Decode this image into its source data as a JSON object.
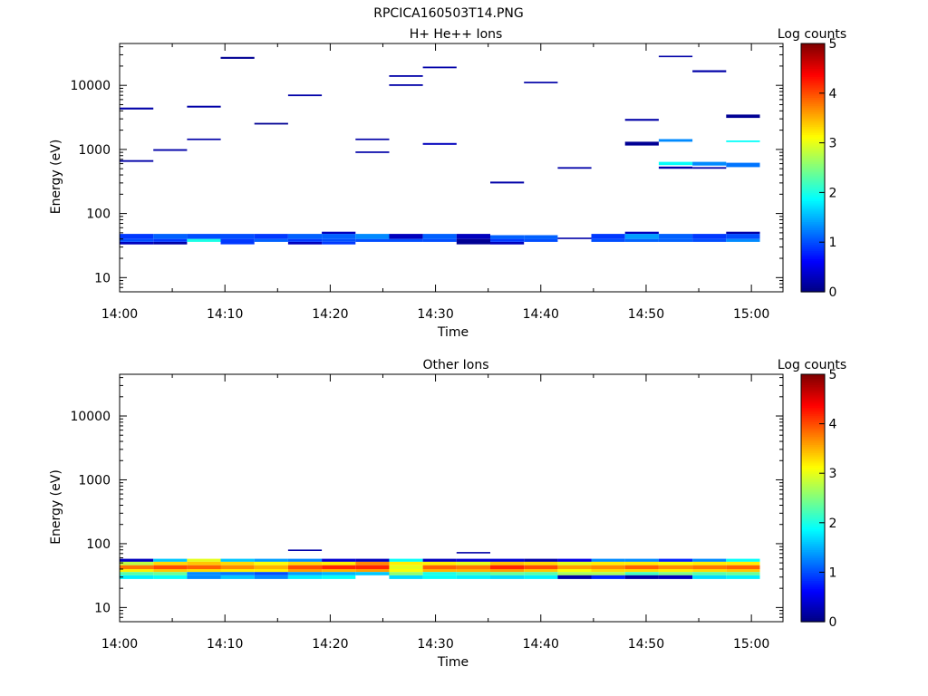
{
  "figure_title": "RPCICA160503T14.PNG",
  "chart_data": [
    {
      "type": "heatmap",
      "title": "H+ He++ Ions",
      "xlabel": "Time",
      "ylabel": "Energy (eV)",
      "x_ticks": [
        "14:00",
        "14:10",
        "14:20",
        "14:30",
        "14:40",
        "14:50",
        "15:00"
      ],
      "y_ticks": [
        "10",
        "100",
        "1000",
        "10000"
      ],
      "yscale": "log",
      "ylim": [
        6,
        45000
      ],
      "xlim_minutes": [
        0,
        63
      ],
      "colorbar": {
        "label": "Log counts",
        "ticks": [
          "0",
          "1",
          "2",
          "3",
          "4",
          "5"
        ],
        "range": [
          0,
          5
        ],
        "colormap": "jet"
      },
      "cells": [
        [
          0,
          3.2,
          40,
          48,
          0.9
        ],
        [
          0,
          3.2,
          36,
          40,
          1.0
        ],
        [
          0,
          3.2,
          33,
          36,
          0.3
        ],
        [
          0,
          3.2,
          640,
          680,
          0.2
        ],
        [
          0,
          3.2,
          4200,
          4500,
          0.2
        ],
        [
          3.2,
          6.4,
          40,
          48,
          1.1
        ],
        [
          3.2,
          6.4,
          36,
          40,
          0.9
        ],
        [
          3.2,
          6.4,
          33,
          36,
          0.2
        ],
        [
          3.2,
          6.4,
          950,
          1010,
          0.2
        ],
        [
          6.4,
          9.6,
          40,
          48,
          1.0
        ],
        [
          6.4,
          9.6,
          36,
          40,
          2.0
        ],
        [
          6.4,
          9.6,
          1400,
          1480,
          0.2
        ],
        [
          6.4,
          9.6,
          4500,
          4800,
          0.2
        ],
        [
          9.6,
          12.8,
          40,
          48,
          1.0
        ],
        [
          9.6,
          12.8,
          33,
          40,
          0.9
        ],
        [
          9.6,
          12.8,
          26000,
          27800,
          0.1
        ],
        [
          12.8,
          16.0,
          40,
          48,
          0.9
        ],
        [
          12.8,
          16.0,
          36,
          40,
          1.1
        ],
        [
          12.8,
          16.0,
          2450,
          2600,
          0.1
        ],
        [
          16.0,
          19.2,
          40,
          48,
          1.1
        ],
        [
          16.0,
          19.2,
          36,
          40,
          0.9
        ],
        [
          16.0,
          19.2,
          33,
          36,
          0.3
        ],
        [
          16.0,
          19.2,
          6800,
          7200,
          0.2
        ],
        [
          19.2,
          22.4,
          48,
          52,
          0.3
        ],
        [
          19.2,
          22.4,
          40,
          48,
          1.1
        ],
        [
          19.2,
          22.4,
          36,
          40,
          1.0
        ],
        [
          19.2,
          22.4,
          33,
          36,
          0.9
        ],
        [
          22.4,
          25.6,
          40,
          48,
          1.3
        ],
        [
          22.4,
          25.6,
          36,
          40,
          1.0
        ],
        [
          22.4,
          25.6,
          880,
          930,
          0.2
        ],
        [
          22.4,
          25.6,
          1400,
          1480,
          0.2
        ],
        [
          25.6,
          28.8,
          40,
          48,
          0.3
        ],
        [
          25.6,
          28.8,
          36,
          40,
          1.0
        ],
        [
          25.6,
          28.8,
          9800,
          10400,
          0.2
        ],
        [
          25.6,
          28.8,
          13600,
          14400,
          0.2
        ],
        [
          28.8,
          32.0,
          40,
          48,
          1.1
        ],
        [
          28.8,
          32.0,
          36,
          40,
          1.0
        ],
        [
          28.8,
          32.0,
          1180,
          1260,
          0.3
        ],
        [
          28.8,
          32.0,
          18500,
          19600,
          0.2
        ],
        [
          32.0,
          35.2,
          40,
          48,
          0.3
        ],
        [
          32.0,
          35.2,
          33,
          40,
          0.1
        ],
        [
          35.2,
          38.4,
          40,
          46,
          1.1
        ],
        [
          35.2,
          38.4,
          36,
          40,
          0.9
        ],
        [
          35.2,
          38.4,
          33,
          36,
          0.3
        ],
        [
          35.2,
          38.4,
          295,
          315,
          0.2
        ],
        [
          38.4,
          41.6,
          40,
          46,
          1.1
        ],
        [
          38.4,
          41.6,
          36,
          40,
          1.0
        ],
        [
          38.4,
          41.6,
          10800,
          11400,
          0.2
        ],
        [
          41.6,
          44.8,
          40,
          42,
          0.2
        ],
        [
          41.6,
          44.8,
          500,
          530,
          0.2
        ],
        [
          44.8,
          48.0,
          40,
          48,
          0.9
        ],
        [
          44.8,
          48.0,
          36,
          40,
          1.0
        ],
        [
          48.0,
          51.2,
          48,
          52,
          0.3
        ],
        [
          48.0,
          51.2,
          40,
          48,
          1.4
        ],
        [
          48.0,
          51.2,
          36,
          40,
          1.1
        ],
        [
          48.0,
          51.2,
          1150,
          1320,
          0.1
        ],
        [
          48.0,
          51.2,
          2800,
          3000,
          0.2
        ],
        [
          51.2,
          54.4,
          40,
          48,
          1.1
        ],
        [
          51.2,
          54.4,
          36,
          40,
          1.1
        ],
        [
          51.2,
          54.4,
          500,
          540,
          0.2
        ],
        [
          51.2,
          54.4,
          570,
          640,
          1.9
        ],
        [
          51.2,
          54.4,
          1320,
          1450,
          1.3
        ],
        [
          51.2,
          54.4,
          27600,
          29000,
          0.2
        ],
        [
          54.4,
          57.6,
          40,
          48,
          0.9
        ],
        [
          54.4,
          57.6,
          36,
          40,
          1.0
        ],
        [
          54.4,
          57.6,
          500,
          530,
          0.2
        ],
        [
          54.4,
          57.6,
          560,
          640,
          1.3
        ],
        [
          54.4,
          57.6,
          16000,
          17200,
          0.2
        ],
        [
          57.6,
          60.8,
          48,
          52,
          0.2
        ],
        [
          57.6,
          60.8,
          40,
          48,
          1.0
        ],
        [
          57.6,
          60.8,
          36,
          40,
          1.3
        ],
        [
          57.6,
          60.8,
          530,
          620,
          1.2
        ],
        [
          57.6,
          60.8,
          1300,
          1380,
          1.9
        ],
        [
          57.6,
          60.8,
          3100,
          3500,
          0.1
        ]
      ]
    },
    {
      "type": "heatmap",
      "title": "Other Ions",
      "xlabel": "Time",
      "ylabel": "Energy (eV)",
      "x_ticks": [
        "14:00",
        "14:10",
        "14:20",
        "14:30",
        "14:40",
        "14:50",
        "15:00"
      ],
      "y_ticks": [
        "10",
        "100",
        "1000",
        "10000"
      ],
      "yscale": "log",
      "ylim": [
        6,
        45000
      ],
      "xlim_minutes": [
        0,
        63
      ],
      "colorbar": {
        "label": "Log counts",
        "ticks": [
          "0",
          "1",
          "2",
          "3",
          "4",
          "5"
        ],
        "range": [
          0,
          5
        ],
        "colormap": "jet"
      },
      "cells": [
        [
          0,
          3.2,
          52,
          58,
          0.3
        ],
        [
          0,
          3.2,
          46,
          52,
          2.8
        ],
        [
          0,
          3.2,
          40,
          46,
          3.8
        ],
        [
          0,
          3.2,
          36,
          40,
          3.2
        ],
        [
          0,
          3.2,
          32,
          36,
          2.3
        ],
        [
          0,
          3.2,
          28,
          32,
          1.8
        ],
        [
          3.2,
          6.4,
          52,
          58,
          1.6
        ],
        [
          3.2,
          6.4,
          46,
          52,
          3.3
        ],
        [
          3.2,
          6.4,
          40,
          46,
          4.0
        ],
        [
          3.2,
          6.4,
          36,
          40,
          3.4
        ],
        [
          3.2,
          6.4,
          32,
          36,
          2.4
        ],
        [
          3.2,
          6.4,
          28,
          32,
          1.9
        ],
        [
          6.4,
          9.6,
          52,
          58,
          3.0
        ],
        [
          6.4,
          9.6,
          46,
          52,
          3.4
        ],
        [
          6.4,
          9.6,
          40,
          46,
          3.9
        ],
        [
          6.4,
          9.6,
          36,
          40,
          3.3
        ],
        [
          6.4,
          9.6,
          32,
          36,
          1.3
        ],
        [
          6.4,
          9.6,
          28,
          32,
          1.3
        ],
        [
          9.6,
          12.8,
          52,
          58,
          1.6
        ],
        [
          9.6,
          12.8,
          46,
          52,
          3.3
        ],
        [
          9.6,
          12.8,
          40,
          46,
          3.7
        ],
        [
          9.6,
          12.8,
          36,
          40,
          3.2
        ],
        [
          9.6,
          12.8,
          32,
          36,
          1.2
        ],
        [
          9.6,
          12.8,
          28,
          32,
          1.6
        ],
        [
          12.8,
          16.0,
          52,
          58,
          1.4
        ],
        [
          12.8,
          16.0,
          46,
          52,
          3.1
        ],
        [
          12.8,
          16.0,
          40,
          46,
          3.5
        ],
        [
          12.8,
          16.0,
          36,
          40,
          3.2
        ],
        [
          12.8,
          16.0,
          32,
          36,
          1.0
        ],
        [
          12.8,
          16.0,
          28,
          32,
          1.3
        ],
        [
          16.0,
          19.2,
          78,
          81,
          0.2
        ],
        [
          16.0,
          19.2,
          52,
          58,
          1.3
        ],
        [
          16.0,
          19.2,
          46,
          52,
          3.3
        ],
        [
          16.0,
          19.2,
          40,
          46,
          4.0
        ],
        [
          16.0,
          19.2,
          36,
          40,
          3.6
        ],
        [
          16.0,
          19.2,
          32,
          36,
          1.4
        ],
        [
          16.0,
          19.2,
          28,
          32,
          1.8
        ],
        [
          19.2,
          22.4,
          52,
          58,
          0.4
        ],
        [
          19.2,
          22.4,
          46,
          52,
          3.2
        ],
        [
          19.2,
          22.4,
          40,
          46,
          4.2
        ],
        [
          19.2,
          22.4,
          36,
          40,
          3.5
        ],
        [
          19.2,
          22.4,
          32,
          36,
          1.5
        ],
        [
          19.2,
          22.4,
          28,
          32,
          1.9
        ],
        [
          22.4,
          25.6,
          52,
          58,
          0.3
        ],
        [
          22.4,
          25.6,
          46,
          52,
          3.7
        ],
        [
          22.4,
          25.6,
          40,
          46,
          4.2
        ],
        [
          22.4,
          25.6,
          36,
          40,
          3.6
        ],
        [
          22.4,
          25.6,
          32,
          36,
          1.6
        ],
        [
          25.6,
          28.8,
          52,
          58,
          1.9
        ],
        [
          25.6,
          28.8,
          46,
          52,
          3.2
        ],
        [
          25.6,
          28.8,
          40,
          46,
          3.0
        ],
        [
          25.6,
          28.8,
          36,
          40,
          3.1
        ],
        [
          25.6,
          28.8,
          32,
          36,
          2.6
        ],
        [
          25.6,
          28.8,
          28,
          32,
          1.7
        ],
        [
          28.8,
          32.0,
          52,
          58,
          0.3
        ],
        [
          28.8,
          32.0,
          46,
          52,
          3.2
        ],
        [
          28.8,
          32.0,
          40,
          46,
          3.9
        ],
        [
          28.8,
          32.0,
          36,
          40,
          3.5
        ],
        [
          28.8,
          32.0,
          32,
          36,
          2.0
        ],
        [
          28.8,
          32.0,
          28,
          32,
          1.9
        ],
        [
          32.0,
          35.2,
          71,
          74,
          0.2
        ],
        [
          32.0,
          35.2,
          52,
          58,
          0.4
        ],
        [
          32.0,
          35.2,
          46,
          52,
          3.0
        ],
        [
          32.0,
          35.2,
          40,
          46,
          3.8
        ],
        [
          32.0,
          35.2,
          36,
          40,
          3.5
        ],
        [
          32.0,
          35.2,
          32,
          36,
          2.2
        ],
        [
          32.0,
          35.2,
          28,
          32,
          1.8
        ],
        [
          35.2,
          38.4,
          52,
          58,
          0.4
        ],
        [
          35.2,
          38.4,
          46,
          52,
          3.4
        ],
        [
          35.2,
          38.4,
          40,
          46,
          4.2
        ],
        [
          35.2,
          38.4,
          36,
          40,
          3.6
        ],
        [
          35.2,
          38.4,
          32,
          36,
          2.4
        ],
        [
          35.2,
          38.4,
          28,
          32,
          1.7
        ],
        [
          38.4,
          41.6,
          52,
          58,
          0.2
        ],
        [
          38.4,
          41.6,
          46,
          52,
          3.3
        ],
        [
          38.4,
          41.6,
          40,
          46,
          4.0
        ],
        [
          38.4,
          41.6,
          36,
          40,
          3.4
        ],
        [
          38.4,
          41.6,
          32,
          36,
          2.3
        ],
        [
          38.4,
          41.6,
          28,
          32,
          1.8
        ],
        [
          41.6,
          44.8,
          52,
          58,
          0.5
        ],
        [
          41.6,
          44.8,
          46,
          52,
          3.0
        ],
        [
          41.6,
          44.8,
          40,
          46,
          3.6
        ],
        [
          41.6,
          44.8,
          36,
          40,
          3.1
        ],
        [
          41.6,
          44.8,
          32,
          36,
          2.7
        ],
        [
          41.6,
          44.8,
          28,
          32,
          0.2
        ],
        [
          44.8,
          48.0,
          52,
          58,
          1.3
        ],
        [
          44.8,
          48.0,
          46,
          52,
          3.2
        ],
        [
          44.8,
          48.0,
          40,
          46,
          3.7
        ],
        [
          44.8,
          48.0,
          36,
          40,
          3.3
        ],
        [
          44.8,
          48.0,
          32,
          36,
          2.7
        ],
        [
          44.8,
          48.0,
          28,
          32,
          0.8
        ],
        [
          48.0,
          51.2,
          52,
          58,
          1.3
        ],
        [
          48.0,
          51.2,
          46,
          52,
          3.2
        ],
        [
          48.0,
          51.2,
          40,
          46,
          3.9
        ],
        [
          48.0,
          51.2,
          36,
          40,
          3.3
        ],
        [
          48.0,
          51.2,
          32,
          36,
          2.2
        ],
        [
          48.0,
          51.2,
          28,
          32,
          0.2
        ],
        [
          51.2,
          54.4,
          52,
          58,
          0.8
        ],
        [
          51.2,
          54.4,
          46,
          52,
          3.1
        ],
        [
          51.2,
          54.4,
          40,
          46,
          3.7
        ],
        [
          51.2,
          54.4,
          36,
          40,
          3.2
        ],
        [
          51.2,
          54.4,
          32,
          36,
          2.5
        ],
        [
          51.2,
          54.4,
          28,
          32,
          0.3
        ],
        [
          54.4,
          57.6,
          52,
          58,
          1.3
        ],
        [
          54.4,
          57.6,
          46,
          52,
          3.2
        ],
        [
          54.4,
          57.6,
          40,
          46,
          3.8
        ],
        [
          54.4,
          57.6,
          36,
          40,
          3.3
        ],
        [
          54.4,
          57.6,
          32,
          36,
          2.3
        ],
        [
          54.4,
          57.6,
          28,
          32,
          1.7
        ],
        [
          57.6,
          60.8,
          52,
          58,
          1.9
        ],
        [
          57.6,
          60.8,
          46,
          52,
          3.2
        ],
        [
          57.6,
          60.8,
          40,
          46,
          3.9
        ],
        [
          57.6,
          60.8,
          36,
          40,
          3.4
        ],
        [
          57.6,
          60.8,
          32,
          36,
          2.4
        ],
        [
          57.6,
          60.8,
          28,
          32,
          1.8
        ]
      ]
    }
  ]
}
